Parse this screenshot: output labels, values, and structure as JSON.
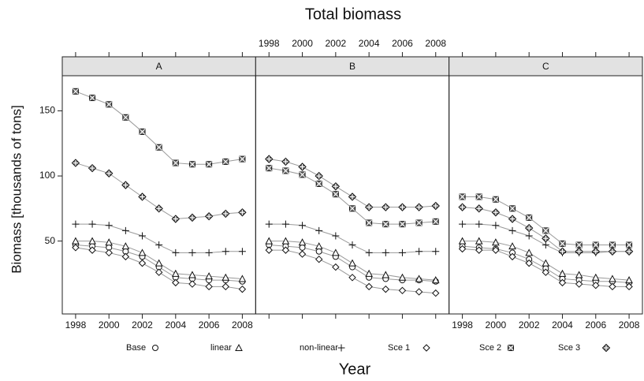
{
  "title": "Total biomass",
  "xlabel": "Year",
  "ylabel": "Biomass [thousands of tons]",
  "legend": [
    {
      "name": "Base",
      "marker": "circle"
    },
    {
      "name": "linear",
      "marker": "triangle"
    },
    {
      "name": "non-linear",
      "marker": "plus"
    },
    {
      "name": "Sce 1",
      "marker": "diamond"
    },
    {
      "name": "Sce 2",
      "marker": "square-x"
    },
    {
      "name": "Sce 3",
      "marker": "diamond-plus"
    }
  ],
  "chart_data": [
    {
      "type": "line",
      "title": "A",
      "xtick_side": "bottom",
      "x": [
        1998,
        1999,
        2000,
        2001,
        2002,
        2003,
        2004,
        2005,
        2006,
        2007,
        2008
      ],
      "xlim": [
        1997.2,
        2008.8
      ],
      "ylim": [
        -6,
        177
      ],
      "xticks": [
        1998,
        2000,
        2002,
        2004,
        2006,
        2008
      ],
      "yticks": [
        50,
        100,
        150
      ],
      "series": [
        {
          "values": [
            47,
            46,
            45,
            42,
            38,
            30,
            22,
            21,
            20,
            20,
            19
          ]
        },
        {
          "values": [
            50,
            50,
            49,
            46,
            41,
            33,
            25,
            24,
            23,
            22,
            21
          ]
        },
        {
          "values": [
            63,
            63,
            62,
            58,
            54,
            47,
            41,
            41,
            41,
            42,
            42
          ]
        },
        {
          "values": [
            45,
            43,
            41,
            38,
            33,
            26,
            18,
            17,
            15,
            15,
            13
          ]
        },
        {
          "values": [
            165,
            160,
            155,
            145,
            134,
            122,
            110,
            109,
            109,
            111,
            113
          ]
        },
        {
          "values": [
            110,
            106,
            102,
            93,
            84,
            75,
            67,
            68,
            69,
            71,
            72
          ]
        }
      ]
    },
    {
      "type": "line",
      "title": "B",
      "xtick_side": "top",
      "x": [
        1998,
        1999,
        2000,
        2001,
        2002,
        2003,
        2004,
        2005,
        2006,
        2007,
        2008
      ],
      "xlim": [
        1997.2,
        2008.8
      ],
      "ylim": [
        -6,
        177
      ],
      "xticks": [
        1998,
        2000,
        2002,
        2004,
        2006,
        2008
      ],
      "series": [
        {
          "values": [
            47,
            46,
            45,
            42,
            38,
            30,
            22,
            21,
            20,
            20,
            19
          ]
        },
        {
          "values": [
            50,
            50,
            49,
            46,
            41,
            33,
            25,
            24,
            22,
            21,
            20
          ]
        },
        {
          "values": [
            63,
            63,
            62,
            58,
            54,
            47,
            41,
            41,
            41,
            42,
            42
          ]
        },
        {
          "values": [
            43,
            43,
            40,
            36,
            30,
            22,
            15,
            13,
            12,
            11,
            10
          ]
        },
        {
          "values": [
            106,
            104,
            101,
            94,
            86,
            75,
            64,
            63,
            63,
            64,
            65
          ]
        },
        {
          "values": [
            113,
            111,
            107,
            100,
            92,
            84,
            76,
            76,
            76,
            76,
            77
          ]
        }
      ]
    },
    {
      "type": "line",
      "title": "C",
      "xtick_side": "bottom",
      "x": [
        1998,
        1999,
        2000,
        2001,
        2002,
        2003,
        2004,
        2005,
        2006,
        2007,
        2008
      ],
      "xlim": [
        1997.2,
        2008.8
      ],
      "ylim": [
        -6,
        177
      ],
      "xticks": [
        1998,
        2000,
        2002,
        2004,
        2006,
        2008
      ],
      "series": [
        {
          "values": [
            46,
            45,
            44,
            41,
            36,
            29,
            21,
            20,
            19,
            19,
            18
          ]
        },
        {
          "values": [
            50,
            50,
            49,
            46,
            41,
            33,
            25,
            24,
            22,
            21,
            20
          ]
        },
        {
          "values": [
            63,
            63,
            62,
            58,
            54,
            47,
            41,
            41,
            41,
            42,
            42
          ]
        },
        {
          "values": [
            44,
            43,
            43,
            38,
            33,
            26,
            18,
            17,
            16,
            15,
            15
          ]
        },
        {
          "values": [
            84,
            84,
            82,
            75,
            68,
            58,
            48,
            47,
            47,
            47,
            47
          ]
        },
        {
          "values": [
            76,
            75,
            72,
            67,
            60,
            52,
            42,
            42,
            42,
            42,
            42
          ]
        }
      ]
    }
  ]
}
